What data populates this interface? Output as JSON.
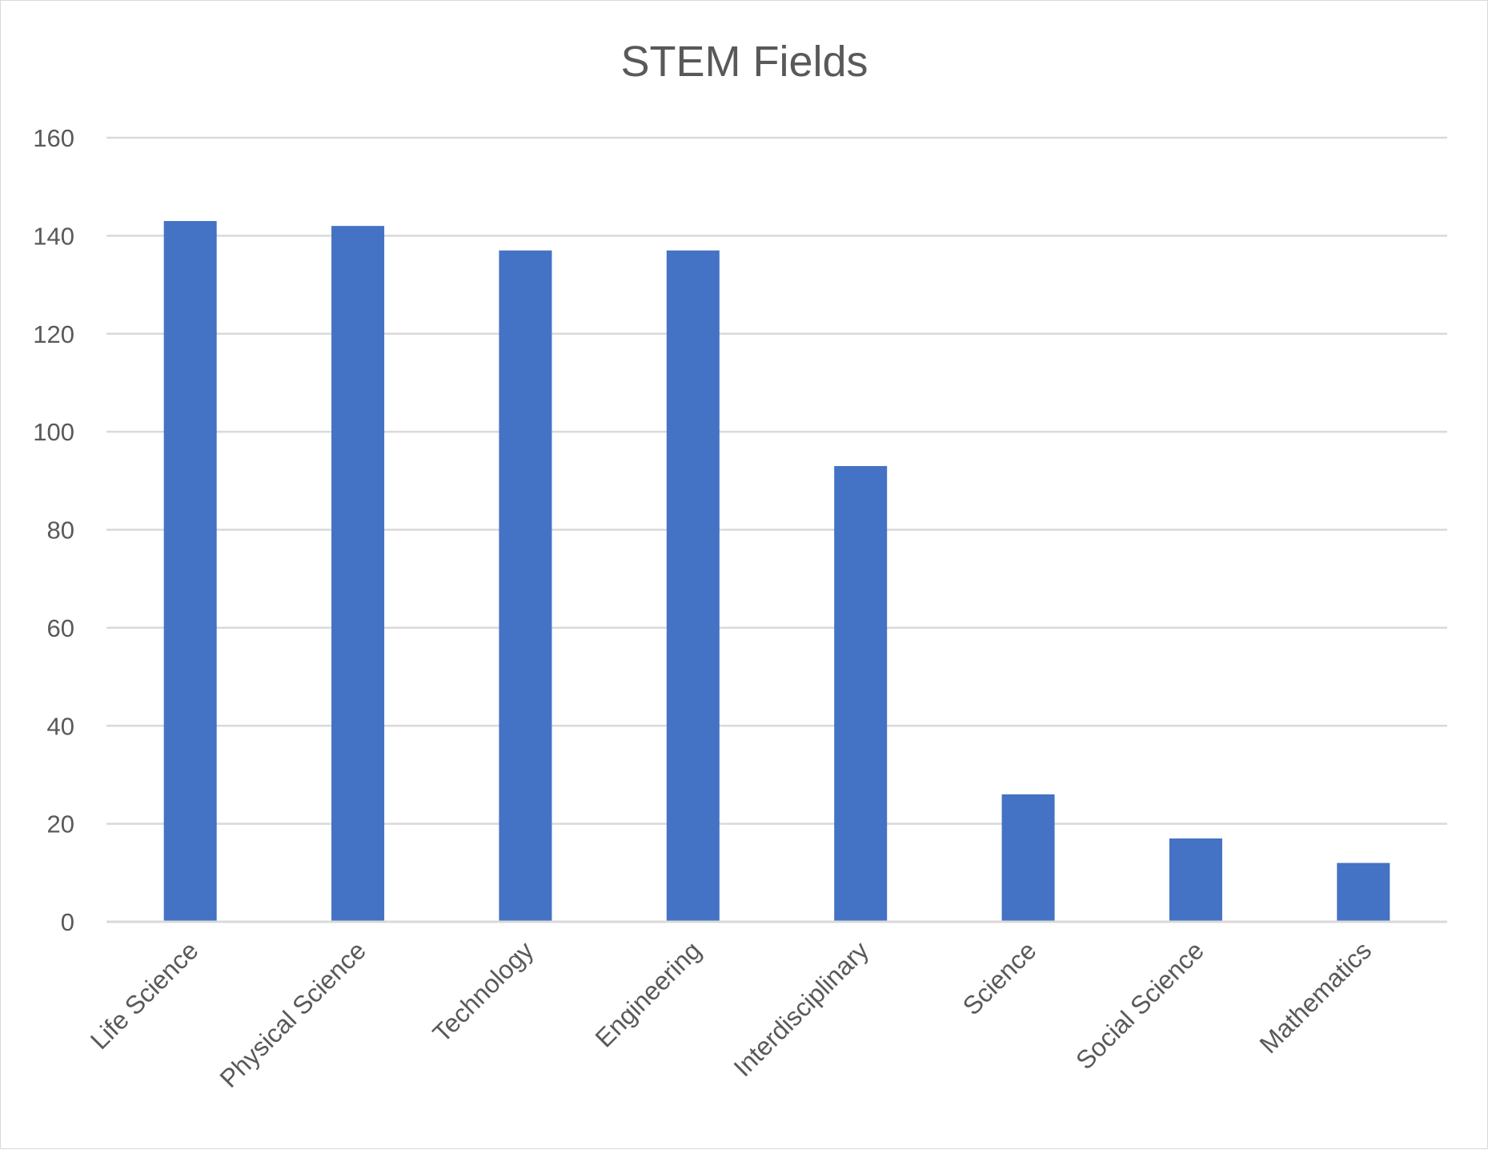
{
  "chart_data": {
    "type": "bar",
    "title": "STEM Fields",
    "xlabel": "",
    "ylabel": "",
    "categories": [
      "Life Science",
      "Physical Science",
      "Technology",
      "Engineering",
      "Interdisciplinary",
      "Science",
      "Social Science",
      "Mathematics"
    ],
    "values": [
      143,
      142,
      137,
      137,
      93,
      26,
      17,
      12
    ],
    "ylim": [
      0,
      160
    ],
    "yticks": [
      0,
      20,
      40,
      60,
      80,
      100,
      120,
      140,
      160
    ],
    "grid": true,
    "legend": "none",
    "bar_color": "#4472C4"
  }
}
